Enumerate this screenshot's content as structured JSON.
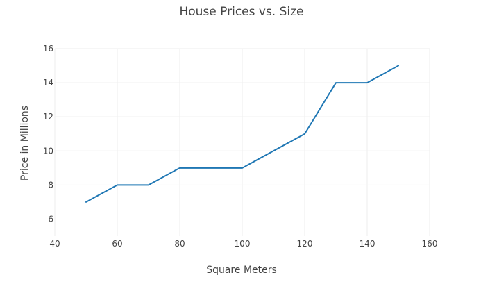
{
  "chart_data": {
    "type": "line",
    "title": "House Prices vs. Size",
    "xlabel": "Square Meters",
    "ylabel": "Price in Millions",
    "xlim": [
      40,
      160
    ],
    "ylim": [
      5,
      16
    ],
    "x_ticks": [
      40,
      60,
      80,
      100,
      120,
      140,
      160
    ],
    "y_ticks": [
      6,
      8,
      10,
      12,
      14,
      16
    ],
    "grid": true,
    "legend": false,
    "series": [
      {
        "color": "#1f77b4",
        "x": [
          50,
          60,
          70,
          80,
          90,
          100,
          110,
          120,
          130,
          140,
          150
        ],
        "y": [
          7,
          8,
          8,
          9,
          9,
          9,
          10,
          11,
          14,
          14,
          15
        ]
      }
    ]
  }
}
